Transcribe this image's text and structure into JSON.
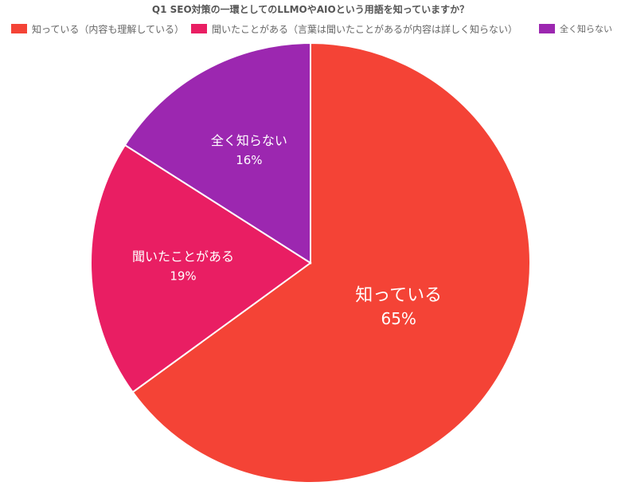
{
  "chart_data": {
    "type": "pie",
    "title": "Q1 SEO対策の一環としてのLLMOやAIOという用語を知っていますか？",
    "legend": [
      "知っている（内容も理解している）",
      "聞いたことがある（言葉は聞いたことがあるが内容は詳しく知らない）",
      "全く知らない"
    ],
    "legend_position": "top",
    "slices": [
      {
        "label": "知っている",
        "value": 65,
        "value_label": "65%",
        "color": "#F44336"
      },
      {
        "label": "聞いたことがある",
        "value": 19,
        "value_label": "19%",
        "color": "#E91E63"
      },
      {
        "label": "全く知らない",
        "value": 16,
        "value_label": "16%",
        "color": "#9C27B0"
      }
    ]
  }
}
